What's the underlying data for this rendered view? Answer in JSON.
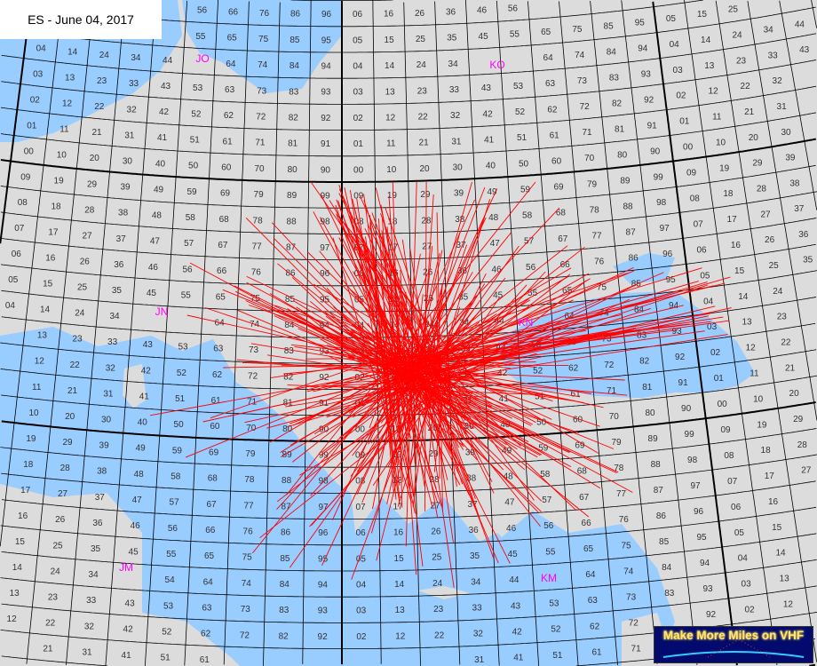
{
  "title": "ES - June 04, 2017",
  "logo": {
    "text": "Make More Miles on VHF"
  },
  "map": {
    "colors": {
      "land": "#dcdcdc",
      "sea": "#99ccff",
      "grid": "#000000",
      "paths": "#ff0000",
      "field_label": "#ff00ff",
      "square_label": "#333333"
    },
    "fields": [
      {
        "label": "JO"
      },
      {
        "label": "KO"
      },
      {
        "label": "JN"
      },
      {
        "label": "KN"
      },
      {
        "label": "JM"
      },
      {
        "label": "KM"
      }
    ],
    "square_labels": "two-digit Maidenhead square numbers in every grid square",
    "paths_shown": "sporadic-E QSO paths (red lines)"
  }
}
